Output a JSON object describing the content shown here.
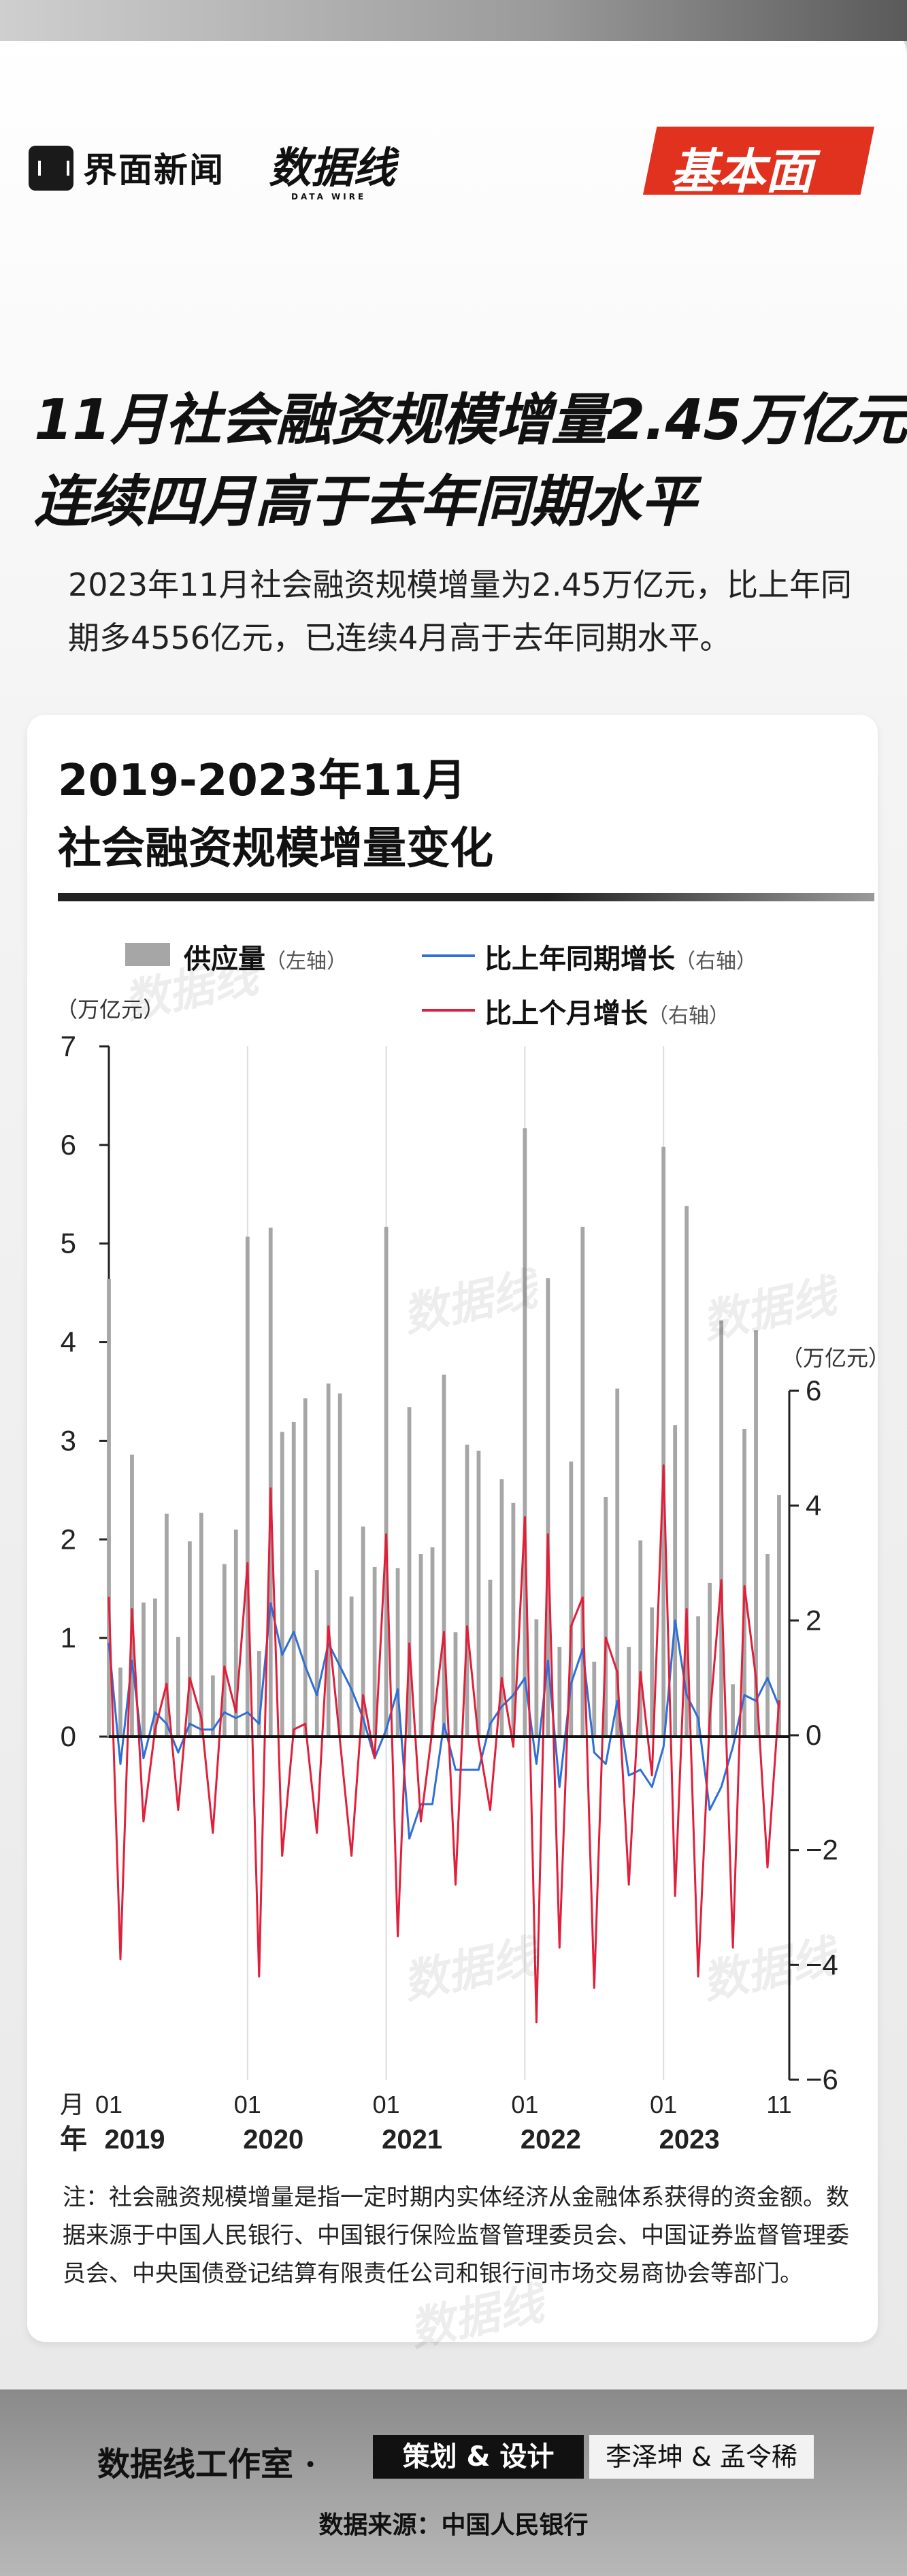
{
  "brand": {
    "media": "界面新闻",
    "datawire": "数据线",
    "datawire_en": "DATA WIRE",
    "column": "基本面"
  },
  "headline": {
    "line1": "11月社会融资规模增量2.45万亿元",
    "line2": "连续四月高于去年同期水平"
  },
  "lead": "2023年11月社会融资规模增量为2.45万亿元，比上年同期多4556亿元，已连续4月高于去年同期水平。",
  "chart_title": {
    "line1": "2019-2023年11月",
    "line2": "社会融资规模增量变化"
  },
  "legend": {
    "bars": {
      "label": "供应量",
      "axis": "（左轴）"
    },
    "yoy": {
      "label": "比上年同期增长",
      "axis": "（右轴）"
    },
    "mom": {
      "label": "比上个月增长",
      "axis": "（右轴）"
    }
  },
  "units": {
    "left": "（万亿元）",
    "right": "（万亿元）"
  },
  "x_axis": {
    "month_label": "月",
    "year_label": "年"
  },
  "note": "注：社会融资规模增量是指一定时期内实体经济从金融体系获得的资金额。数据来源于中国人民银行、中国银行保险监督管理委员会、中国证券监督管理委员会、中央国债登记结算有限责任公司和银行间市场交易商协会等部门。",
  "footer": {
    "studio": "数据线工作室 ·",
    "role": "策划 & 设计",
    "names": "李泽坤 & 孟令稀",
    "source": "数据来源：中国人民银行"
  },
  "colors": {
    "bars": "#a6a6a6",
    "yoy": "#2f6fd6",
    "mom": "#e0203a",
    "badge": "#e0321e"
  },
  "chart_data": {
    "type": "bar+line",
    "left_axis": {
      "ylim": [
        0,
        7
      ],
      "ticks": [
        0,
        1,
        2,
        3,
        4,
        5,
        6,
        7
      ]
    },
    "right_axis": {
      "ylim": [
        -6,
        6
      ],
      "ticks": [
        -6,
        -4,
        -2,
        0,
        2,
        4,
        6
      ]
    },
    "x_month_ticks": [
      {
        "index": 0,
        "label": "01"
      },
      {
        "index": 12,
        "label": "01"
      },
      {
        "index": 24,
        "label": "01"
      },
      {
        "index": 36,
        "label": "01"
      },
      {
        "index": 48,
        "label": "01"
      },
      {
        "index": 58,
        "label": "11"
      }
    ],
    "x_year_ticks": [
      {
        "index": 0,
        "label": "2019"
      },
      {
        "index": 12,
        "label": "2020"
      },
      {
        "index": 24,
        "label": "2021"
      },
      {
        "index": 36,
        "label": "2022"
      },
      {
        "index": 48,
        "label": "2023"
      }
    ],
    "series": [
      {
        "name": "供应量",
        "axis": "left",
        "type": "bar",
        "values": [
          4.64,
          0.7,
          2.86,
          1.36,
          1.4,
          2.26,
          1.01,
          1.98,
          2.27,
          0.62,
          1.75,
          2.1,
          5.07,
          0.87,
          5.16,
          3.09,
          3.19,
          3.43,
          1.69,
          3.58,
          3.48,
          1.42,
          2.13,
          1.72,
          5.17,
          1.71,
          3.34,
          1.85,
          1.92,
          3.67,
          1.06,
          2.96,
          2.9,
          1.59,
          2.61,
          2.37,
          6.17,
          1.19,
          4.65,
          0.91,
          2.79,
          5.17,
          0.76,
          2.43,
          3.53,
          0.91,
          1.99,
          1.31,
          5.98,
          3.16,
          5.38,
          1.22,
          1.56,
          4.22,
          0.53,
          3.12,
          4.12,
          1.85,
          2.45
        ]
      },
      {
        "name": "比上年同期增长",
        "axis": "right",
        "type": "line",
        "values": [
          1.6,
          -0.5,
          1.3,
          -0.4,
          0.4,
          0.2,
          -0.3,
          0.2,
          0.1,
          0.1,
          0.4,
          0.3,
          0.4,
          0.2,
          2.3,
          1.4,
          1.8,
          1.2,
          0.7,
          1.6,
          1.2,
          0.8,
          0.3,
          -0.4,
          0.1,
          0.8,
          -1.8,
          -1.2,
          -1.2,
          0.2,
          -0.6,
          -0.6,
          -0.6,
          0.2,
          0.5,
          0.7,
          1.0,
          -0.5,
          1.3,
          -0.9,
          0.9,
          1.5,
          -0.3,
          -0.5,
          0.6,
          -0.7,
          -0.6,
          -0.9,
          -0.2,
          2.0,
          0.7,
          0.3,
          -1.3,
          -0.9,
          -0.2,
          0.7,
          0.6,
          1.0,
          0.5
        ]
      },
      {
        "name": "比上个月增长",
        "axis": "right",
        "type": "line",
        "values": [
          2.4,
          -3.9,
          2.2,
          -1.5,
          0.1,
          0.9,
          -1.3,
          1.0,
          0.3,
          -1.7,
          1.2,
          0.4,
          3.0,
          -4.2,
          4.3,
          -2.1,
          0.1,
          0.2,
          -1.7,
          1.9,
          -0.1,
          -2.1,
          0.7,
          -0.4,
          3.5,
          -3.5,
          1.6,
          -1.5,
          0.1,
          1.8,
          -2.6,
          1.9,
          -0.1,
          -1.3,
          1.0,
          -0.2,
          3.8,
          -5.0,
          3.5,
          -3.7,
          1.9,
          2.4,
          -4.4,
          1.7,
          1.1,
          -2.6,
          1.1,
          -0.7,
          4.7,
          -2.8,
          2.2,
          -4.2,
          0.3,
          2.7,
          -3.7,
          2.6,
          1.0,
          -2.3,
          0.6
        ]
      }
    ]
  }
}
